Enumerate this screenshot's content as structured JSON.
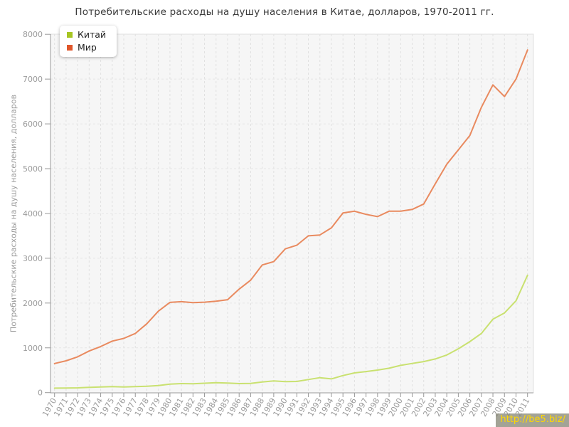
{
  "page": {
    "title": "Потребительские расходы на душу населения в Китае, долларов, 1970-2011 гг.",
    "watermark": "http://be5.biz/"
  },
  "colors": {
    "background": "#ffffff",
    "plot_background": "#f6f6f6",
    "grid_vertical": "#e0e0e0",
    "grid_horizontal": "#e6e6e6",
    "axis": "#999999",
    "tick_text": "#9b9b9b",
    "title_text": "#3a3a3a",
    "watermark_text": "#ffd800",
    "watermark_bg": "#898978"
  },
  "chart_data": {
    "type": "line",
    "title": "Потребительские расходы на душу населения в Китае, долларов, 1970-2011 гг.",
    "xlabel": "",
    "ylabel": "Потребительские расходы на душу населения, долларов",
    "ylim": [
      0,
      8000
    ],
    "yticks": [
      0,
      1000,
      2000,
      3000,
      4000,
      5000,
      6000,
      7000,
      8000
    ],
    "grid": true,
    "grid_style": "dashed",
    "legend_position": "top-left",
    "x": [
      1970,
      1971,
      1972,
      1973,
      1974,
      1975,
      1976,
      1977,
      1978,
      1979,
      1980,
      1981,
      1982,
      1983,
      1984,
      1985,
      1986,
      1987,
      1988,
      1989,
      1990,
      1991,
      1992,
      1993,
      1994,
      1995,
      1996,
      1997,
      1998,
      1999,
      2000,
      2001,
      2002,
      2003,
      2004,
      2005,
      2006,
      2007,
      2008,
      2009,
      2010,
      2011
    ],
    "series": [
      {
        "id": "china",
        "name": "Китай",
        "legend_color": "#a6c522",
        "line_color": "#c9e170",
        "values": [
          100,
          102,
          106,
          117,
          127,
          133,
          127,
          133,
          143,
          159,
          190,
          202,
          197,
          210,
          222,
          213,
          202,
          206,
          238,
          260,
          247,
          250,
          292,
          333,
          307,
          381,
          440,
          471,
          503,
          545,
          609,
          651,
          693,
          752,
          841,
          979,
          1140,
          1320,
          1640,
          1780,
          2050,
          2620
        ]
      },
      {
        "id": "world",
        "name": "Мир",
        "legend_color": "#e0562a",
        "line_color": "#e98a5f",
        "values": [
          650,
          710,
          800,
          930,
          1030,
          1150,
          1210,
          1320,
          1540,
          1820,
          2015,
          2030,
          2010,
          2020,
          2040,
          2075,
          2310,
          2510,
          2850,
          2925,
          3210,
          3290,
          3500,
          3520,
          3680,
          4010,
          4050,
          3980,
          3930,
          4050,
          4050,
          4090,
          4210,
          4660,
          5100,
          5420,
          5740,
          6370,
          6870,
          6610,
          7000,
          7650
        ]
      }
    ]
  }
}
